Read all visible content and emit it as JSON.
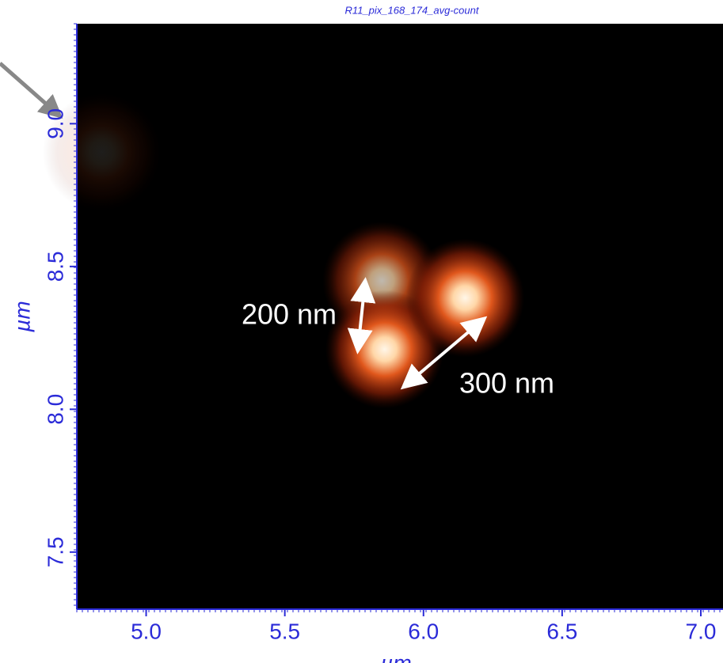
{
  "chart_data": {
    "type": "image",
    "title": "R11_pix_168_174_avg-count",
    "xlabel": "µm",
    "ylabel": "µm",
    "xlim": [
      4.75,
      7.08
    ],
    "ylim": [
      7.3,
      9.35
    ],
    "xticks": [
      {
        "value": 5,
        "label": "5.0"
      },
      5.5,
      {
        "value": 6,
        "label": "6.0"
      },
      6.5,
      {
        "value": 7,
        "label": "7.0"
      }
    ],
    "yticks": [
      7.5,
      {
        "value": 8,
        "label": "8.0"
      },
      8.5,
      {
        "value": 9,
        "label": "9.0"
      }
    ],
    "x": [
      5.85,
      5.86,
      6.15,
      4.84
    ],
    "values": [
      8.45,
      8.21,
      8.39,
      8.9
    ],
    "intensity": [
      0.75,
      1,
      1,
      0.12
    ],
    "annotations": [
      "200 nm",
      "300 nm"
    ]
  }
}
